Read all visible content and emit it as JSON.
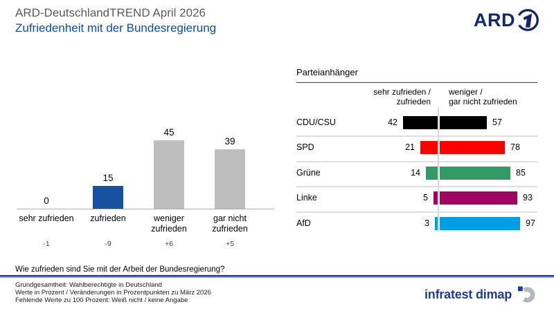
{
  "header": {
    "title": "ARD-DeutschlandTREND April 2026",
    "subtitle": "Zufriedenheit mit der Bundesregierung",
    "brand": "ARD",
    "title_color": "#5a5a5a",
    "subtitle_color": "#0b4ea2",
    "brand_color": "#15276b"
  },
  "chart_data": [
    {
      "type": "bar",
      "title": "",
      "categories": [
        "sehr zufrieden",
        "zufrieden",
        "weniger zufrieden",
        "gar nicht zufrieden"
      ],
      "values": [
        0,
        15,
        45,
        39
      ],
      "changes": [
        "-1",
        "-9",
        "+6",
        "+5"
      ],
      "bar_colors": [
        "#bdbdbd",
        "#17509e",
        "#bdbdbd",
        "#bdbdbd"
      ],
      "xlabel": "",
      "ylabel": "",
      "ylim": [
        0,
        50
      ],
      "unit": "Prozent",
      "grid": false,
      "legend": false
    },
    {
      "type": "bar",
      "subtype": "diverging",
      "title": "Parteianhänger",
      "col_left_header": "sehr zufrieden /\nzufrieden",
      "col_right_header": "weniger /\ngar nicht zufrieden",
      "categories": [
        "CDU/CSU",
        "SPD",
        "Grüne",
        "Linke",
        "AfD"
      ],
      "series": [
        {
          "name": "sehr zufrieden / zufrieden",
          "values": [
            42,
            21,
            14,
            5,
            3
          ]
        },
        {
          "name": "weniger / gar nicht zufrieden",
          "values": [
            57,
            78,
            85,
            93,
            97
          ]
        }
      ],
      "bar_colors": [
        "#000000",
        "#fe0000",
        "#339966",
        "#a00562",
        "#009ee3"
      ],
      "unit": "Prozent",
      "xlim": [
        0,
        100
      ]
    }
  ],
  "footer": {
    "question": "Wie zufrieden sind Sie mit der Arbeit der Bundesregierung?",
    "notes": [
      "Grundgesamtheit: Wahlberechtigte in Deutschland",
      "Werte in Prozent / Veränderungen in Prozentpunkten zu März 2026",
      "Fehlende Werte zu 100 Prozent: Weiß nicht / keine Angabe"
    ],
    "brand": "infratest dimap",
    "brand_color": "#1e3c96"
  }
}
